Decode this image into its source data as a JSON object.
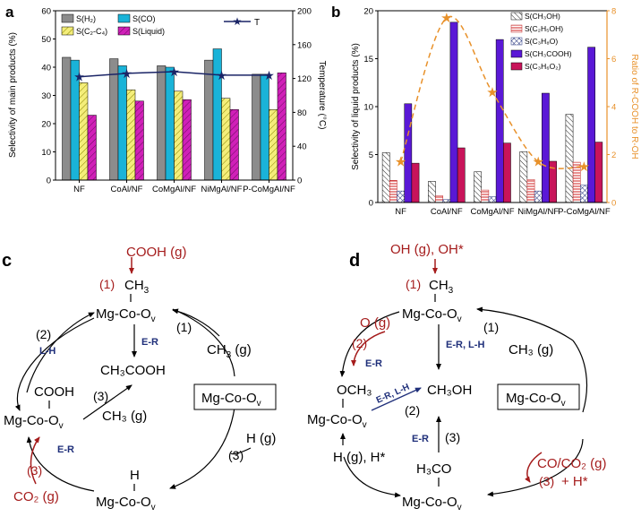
{
  "colors": {
    "gray": "#8c8c8c",
    "cyan": "#1ab3d8",
    "yellow": "#f4ee7a",
    "magenta": "#d020b8",
    "navy": "#1a2466",
    "orange": "#e8912a",
    "red": "#a51c1c",
    "blue": "#1f2f7a",
    "purple": "#5a18d6",
    "crimson": "#c8145a"
  },
  "chart_data": [
    {
      "panel": "a",
      "type": "bar",
      "categories": [
        "NF",
        "CoAl/NF",
        "CoMgAl/NF",
        "NiMgAl/NF",
        "P-CoMgAl/NF"
      ],
      "ylabel": "Selectivity of main products (%)",
      "y2label": "Temperature (°C)",
      "ylim": [
        0,
        60
      ],
      "y2lim": [
        0,
        200
      ],
      "yticks": [
        "0",
        "10",
        "20",
        "30",
        "40",
        "50",
        "60"
      ],
      "y2ticks": [
        "0",
        "40",
        "80",
        "120",
        "160",
        "200"
      ],
      "series": [
        {
          "name": "S(H₂)",
          "values": [
            43.5,
            43,
            40.5,
            42.5,
            37.5
          ]
        },
        {
          "name": "S(CO)",
          "values": [
            42.5,
            40.5,
            40,
            46.5,
            37.5
          ]
        },
        {
          "name": "S(C₂-C₄)",
          "values": [
            34.5,
            32,
            31.5,
            29,
            25
          ]
        },
        {
          "name": "S(Liquid)",
          "values": [
            23,
            28,
            28.5,
            25,
            38
          ]
        }
      ],
      "line": {
        "name": "T",
        "values": [
          122,
          126,
          128,
          124,
          124
        ]
      }
    },
    {
      "panel": "b",
      "type": "bar",
      "categories": [
        "NF",
        "CoAl/NF",
        "CoMgAl/NF",
        "NiMgAl/NF",
        "P-CoMgAl/NF"
      ],
      "ylabel": "Selectivity of liquid products (%)",
      "y2label": "Ratio of R-COOH to R-OH",
      "ylim": [
        0,
        20
      ],
      "y2lim": [
        0,
        8
      ],
      "yticks": [
        "0",
        "5",
        "10",
        "15",
        "20"
      ],
      "y2ticks": [
        "0",
        "2",
        "4",
        "6",
        "8"
      ],
      "series": [
        {
          "name": "S(CH₃OH)",
          "values": [
            5.2,
            2.2,
            3.2,
            5.3,
            9.2
          ]
        },
        {
          "name": "S(C₂H₅OH)",
          "values": [
            2.3,
            0.7,
            1.3,
            2.4,
            4.2
          ]
        },
        {
          "name": "S(C₃H₈O)",
          "values": [
            1.2,
            0.3,
            0.6,
            1.2,
            1.8
          ]
        },
        {
          "name": "S(CH₃COOH)",
          "values": [
            10.3,
            18.8,
            17.0,
            11.4,
            16.2
          ]
        },
        {
          "name": "S(C₃H₆O₂)",
          "values": [
            4.1,
            5.7,
            6.2,
            4.3,
            6.3
          ]
        }
      ],
      "ratio": {
        "name": "Ratio of R-COOH to R-OH",
        "values": [
          1.7,
          7.7,
          4.6,
          1.7,
          1.5
        ]
      }
    }
  ],
  "panels": {
    "a": {
      "label": "a"
    },
    "b": {
      "label": "b"
    },
    "c": {
      "label": "c",
      "center": "Mg-Co-O",
      "top_species": "Mg-Co-O",
      "bottom_species": "Mg-Co-O",
      "left_species": "Mg-Co-O",
      "ov": "v",
      "cooh_g": "COOH (g)",
      "ch3": "CH",
      "sub3": "3",
      "step1a": "(1)",
      "step1b": "(1)",
      "step2": "(2)",
      "step3a": "(3)",
      "step3b": "(3)",
      "step3c": "(3)",
      "lh": "L-H",
      "er1": "E-R",
      "er2": "E-R",
      "ch3g": "CH",
      "g": " (g)",
      "ch3cooh": "CH₃COOH",
      "cooh": "COOH",
      "ch3g2": "CH₃ (g)",
      "h_atom": "H",
      "h_g": "H (g)",
      "co2": "CO₂ (g)"
    },
    "d": {
      "label": "d",
      "center": "Mg-Co-O",
      "top_species": "Mg-Co-O",
      "bottom_species": "Mg-Co-O",
      "left_species": "Mg-Co-O",
      "ov": "v",
      "oh": "OH (g), OH*",
      "ch3": "CH",
      "sub3": "3",
      "step1a": "(1)",
      "step1b": "(1)",
      "step2a": "(2)",
      "step2b": "(2)",
      "step3a": "(3)",
      "step3b": "(3)",
      "o_g": "O (g)",
      "er1": "E-R",
      "er_lh": "E-R, L-H",
      "er_lh2": "E-R, L-H",
      "er3": "E-R",
      "ch3g": "CH₃ (g)",
      "och3": "OCH₃",
      "ch3oh": "CH₃OH",
      "h_h": "H (g), H*",
      "h3co": "H₃CO",
      "co_co2": "CO/CO₂ (g)",
      "h_star": "+ H*"
    }
  }
}
